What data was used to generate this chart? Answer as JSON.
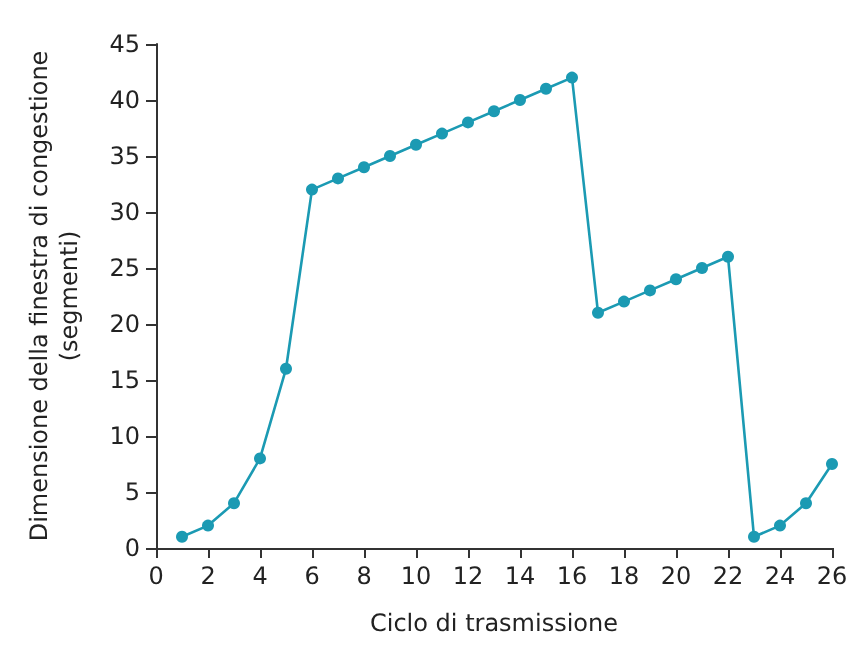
{
  "chart_data": {
    "type": "line",
    "xlabel": "Ciclo di trasmissione",
    "ylabel": "Dimensione della finestra di congestione\n(segmenti)",
    "x": [
      1,
      2,
      3,
      4,
      5,
      6,
      7,
      8,
      9,
      10,
      11,
      12,
      13,
      14,
      15,
      16,
      17,
      18,
      19,
      20,
      21,
      22,
      23,
      24,
      25,
      26
    ],
    "series": [
      {
        "color": "#1b9ab3",
        "values": [
          1,
          2,
          4,
          8,
          16,
          32,
          33,
          34,
          35,
          36,
          37,
          38,
          39,
          40,
          41,
          42,
          21,
          22,
          23,
          24,
          25,
          26,
          1,
          2,
          4,
          7.5
        ]
      }
    ],
    "xlim": [
      0,
      26
    ],
    "xticks": [
      0,
      2,
      4,
      6,
      8,
      10,
      12,
      14,
      16,
      18,
      20,
      22,
      24,
      26
    ],
    "ylim": [
      0,
      45
    ],
    "yticks": [
      0,
      5,
      10,
      15,
      20,
      25,
      30,
      35,
      40,
      45
    ],
    "grid": false,
    "marker": "circle",
    "line_style": "solid"
  }
}
